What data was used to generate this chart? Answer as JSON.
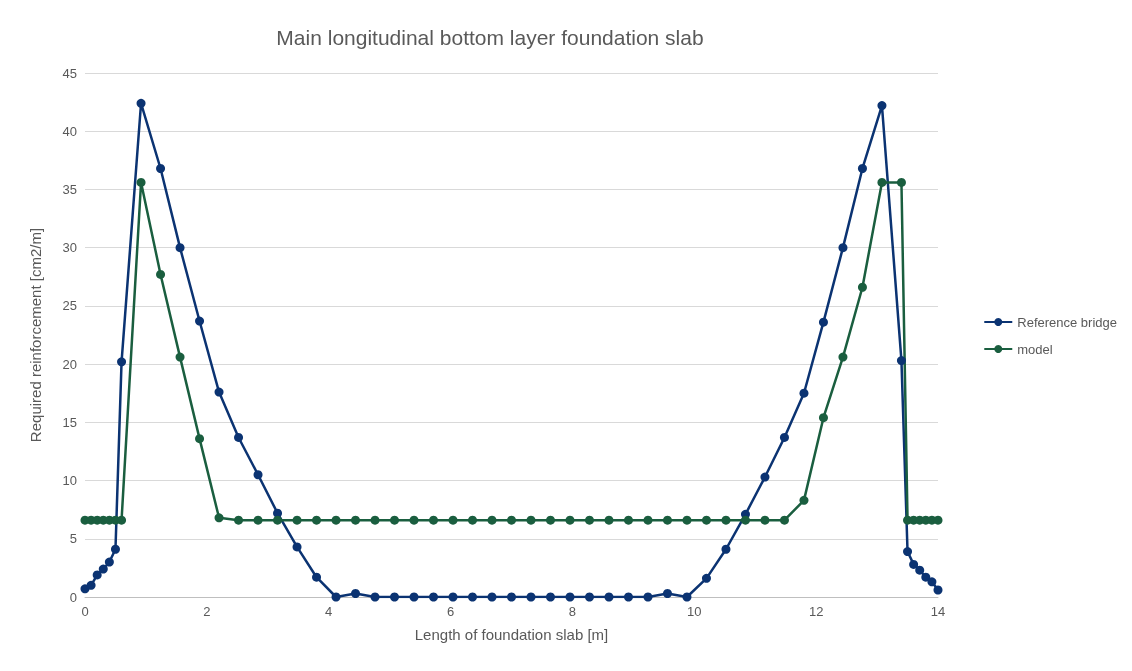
{
  "chart_data": {
    "type": "line",
    "title": "Main longitudinal bottom layer foundation slab",
    "xlabel": "Length of foundation slab [m]",
    "ylabel": "Required reinforcement [cm2/m]",
    "x": [
      0,
      0.1,
      0.2,
      0.3,
      0.4,
      0.5,
      0.6,
      0.92,
      1.24,
      1.56,
      1.88,
      2.2,
      2.52,
      2.84,
      3.16,
      3.48,
      3.8,
      4.12,
      4.44,
      4.76,
      5.08,
      5.4,
      5.72,
      6.04,
      6.36,
      6.68,
      7,
      7.32,
      7.64,
      7.96,
      8.28,
      8.6,
      8.92,
      9.24,
      9.56,
      9.88,
      10.2,
      10.52,
      10.84,
      11.16,
      11.48,
      11.8,
      12.12,
      12.44,
      12.76,
      13.08,
      13.4,
      13.5,
      13.6,
      13.7,
      13.8,
      13.9,
      14
    ],
    "series": [
      {
        "name": "Reference bridge",
        "color": "#0b3372",
        "values": [
          0.7,
          1.0,
          1.9,
          2.4,
          3.0,
          4.1,
          20.2,
          42.4,
          36.8,
          30.0,
          23.7,
          17.6,
          13.7,
          10.5,
          7.2,
          4.3,
          1.7,
          0,
          0.3,
          0,
          0,
          0,
          0,
          0,
          0,
          0,
          0,
          0,
          0,
          0,
          0,
          0,
          0,
          0,
          0.3,
          0,
          1.6,
          4.1,
          7.1,
          10.3,
          13.7,
          17.5,
          23.6,
          30.0,
          36.8,
          42.2,
          20.3,
          3.9,
          2.8,
          2.3,
          1.7,
          1.3,
          0.6
        ]
      },
      {
        "name": "model",
        "color": "#1a5e3f",
        "values": [
          6.6,
          6.6,
          6.6,
          6.6,
          6.6,
          6.6,
          6.6,
          35.6,
          27.7,
          20.6,
          13.6,
          6.8,
          6.6,
          6.6,
          6.6,
          6.6,
          6.6,
          6.6,
          6.6,
          6.6,
          6.6,
          6.6,
          6.6,
          6.6,
          6.6,
          6.6,
          6.6,
          6.6,
          6.6,
          6.6,
          6.6,
          6.6,
          6.6,
          6.6,
          6.6,
          6.6,
          6.6,
          6.6,
          6.6,
          6.6,
          6.6,
          8.3,
          15.4,
          20.6,
          26.6,
          35.6,
          35.6,
          6.6,
          6.6,
          6.6,
          6.6,
          6.6,
          6.6
        ]
      }
    ],
    "xlim": [
      0,
      14
    ],
    "xticks": [
      0,
      2,
      4,
      6,
      8,
      10,
      12,
      14
    ],
    "ylim": [
      0,
      45
    ],
    "yticks": [
      0,
      5,
      10,
      15,
      20,
      25,
      30,
      35,
      40,
      45
    ],
    "grid": "y",
    "legend": "right",
    "marker": "circle",
    "line_style": "solid"
  }
}
